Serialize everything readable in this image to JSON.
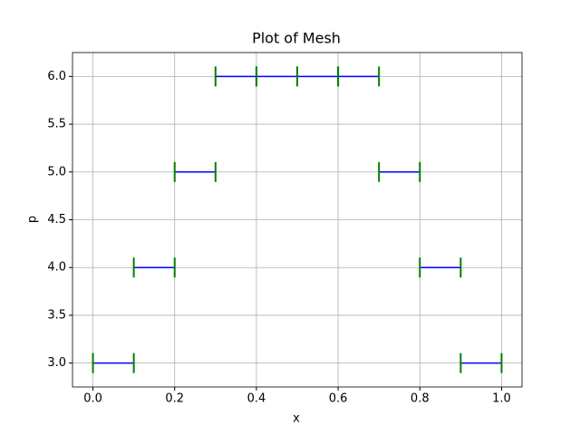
{
  "chart_data": {
    "type": "mesh",
    "title": "Plot of Mesh",
    "x_label": "x",
    "y_label": "p",
    "elements": [
      {
        "x0": 0.0,
        "x1": 0.1,
        "p": 3
      },
      {
        "x0": 0.1,
        "x1": 0.2,
        "p": 4
      },
      {
        "x0": 0.2,
        "x1": 0.3,
        "p": 5
      },
      {
        "x0": 0.3,
        "x1": 0.4,
        "p": 6
      },
      {
        "x0": 0.4,
        "x1": 0.5,
        "p": 6
      },
      {
        "x0": 0.5,
        "x1": 0.6,
        "p": 6
      },
      {
        "x0": 0.6,
        "x1": 0.7,
        "p": 6
      },
      {
        "x0": 0.7,
        "x1": 0.8,
        "p": 5
      },
      {
        "x0": 0.8,
        "x1": 0.9,
        "p": 4
      },
      {
        "x0": 0.9,
        "x1": 1.0,
        "p": 3
      }
    ],
    "line_color": "#0000ff",
    "marker_color": "#008000",
    "xlim": [
      -0.05,
      1.05
    ],
    "ylim": [
      2.75,
      6.25
    ],
    "xticks": [
      {
        "value": 0,
        "label": "0.0"
      },
      0.2,
      0.4,
      0.6,
      0.8,
      {
        "value": 1,
        "label": "1.0"
      }
    ],
    "yticks": [
      {
        "value": 3,
        "label": "3.0"
      },
      3.5,
      {
        "value": 4,
        "label": "4.0"
      },
      4.5,
      {
        "value": 5,
        "label": "5.0"
      },
      5.5,
      {
        "value": 6,
        "label": "6.0"
      }
    ],
    "grid": true
  }
}
